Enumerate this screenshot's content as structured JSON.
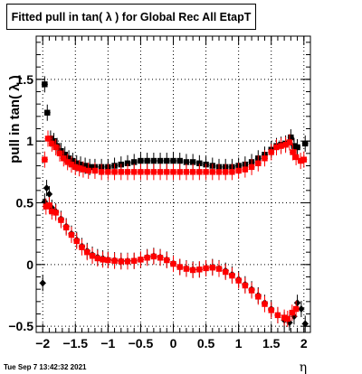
{
  "chart_data": {
    "type": "scatter",
    "title": "Fitted pull in tan( λ ) for Global Rec All EtapT",
    "xlabel": "η",
    "ylabel": "pull in tan( λ )",
    "xlim": [
      -2.1,
      2.1
    ],
    "ylim": [
      -0.55,
      1.85
    ],
    "grid": true,
    "xticks": [
      {
        "v": -2,
        "label": "−2"
      },
      {
        "v": -1.5,
        "label": "−1.5"
      },
      {
        "v": -1,
        "label": "−1"
      },
      {
        "v": -0.5,
        "label": "−0.5"
      },
      {
        "v": 0,
        "label": "0"
      },
      {
        "v": 0.5,
        "label": "0.5"
      },
      {
        "v": 1,
        "label": "1"
      },
      {
        "v": 1.5,
        "label": "1.5"
      },
      {
        "v": 2,
        "label": "2"
      }
    ],
    "yticks": [
      {
        "v": -0.5,
        "label": "−0.5"
      },
      {
        "v": 0,
        "label": "0"
      },
      {
        "v": 0.5,
        "label": "0.5"
      },
      {
        "v": 1,
        "label": "1"
      },
      {
        "v": 1.5,
        "label": "1.5"
      }
    ],
    "series": [
      {
        "color": "#000000",
        "marker": "square",
        "points": [
          [
            -1.97,
            1.46
          ],
          [
            -1.93,
            1.23
          ],
          [
            -1.88,
            1.02
          ],
          [
            -1.83,
            1.0
          ],
          [
            -1.78,
            0.96
          ],
          [
            -1.72,
            0.92
          ],
          [
            -1.66,
            0.89
          ],
          [
            -1.6,
            0.86
          ],
          [
            -1.54,
            0.84
          ],
          [
            -1.48,
            0.82
          ],
          [
            -1.42,
            0.81
          ],
          [
            -1.35,
            0.8
          ],
          [
            -1.28,
            0.79
          ],
          [
            -1.2,
            0.79
          ],
          [
            -1.1,
            0.79
          ],
          [
            -1.0,
            0.79
          ],
          [
            -0.9,
            0.8
          ],
          [
            -0.8,
            0.81
          ],
          [
            -0.7,
            0.82
          ],
          [
            -0.6,
            0.83
          ],
          [
            -0.5,
            0.84
          ],
          [
            -0.4,
            0.84
          ],
          [
            -0.3,
            0.84
          ],
          [
            -0.2,
            0.84
          ],
          [
            -0.1,
            0.84
          ],
          [
            0.0,
            0.84
          ],
          [
            0.1,
            0.84
          ],
          [
            0.2,
            0.83
          ],
          [
            0.3,
            0.83
          ],
          [
            0.4,
            0.82
          ],
          [
            0.5,
            0.81
          ],
          [
            0.6,
            0.8
          ],
          [
            0.7,
            0.79
          ],
          [
            0.8,
            0.79
          ],
          [
            0.9,
            0.79
          ],
          [
            1.0,
            0.8
          ],
          [
            1.1,
            0.81
          ],
          [
            1.2,
            0.83
          ],
          [
            1.3,
            0.86
          ],
          [
            1.4,
            0.89
          ],
          [
            1.5,
            0.93
          ],
          [
            1.58,
            0.96
          ],
          [
            1.65,
            0.97
          ],
          [
            1.72,
            0.98
          ],
          [
            1.8,
            1.03
          ],
          [
            1.85,
            0.96
          ],
          [
            1.9,
            0.95
          ],
          [
            2.02,
            0.98
          ]
        ]
      },
      {
        "color": "#ff0000",
        "marker": "square",
        "points": [
          [
            -1.97,
            0.85
          ],
          [
            -1.92,
            1.02
          ],
          [
            -1.86,
            0.98
          ],
          [
            -1.8,
            0.95
          ],
          [
            -1.74,
            0.9
          ],
          [
            -1.68,
            0.86
          ],
          [
            -1.62,
            0.83
          ],
          [
            -1.56,
            0.81
          ],
          [
            -1.5,
            0.79
          ],
          [
            -1.44,
            0.78
          ],
          [
            -1.38,
            0.77
          ],
          [
            -1.3,
            0.76
          ],
          [
            -1.2,
            0.76
          ],
          [
            -1.1,
            0.75
          ],
          [
            -1.0,
            0.75
          ],
          [
            -0.9,
            0.75
          ],
          [
            -0.8,
            0.75
          ],
          [
            -0.7,
            0.75
          ],
          [
            -0.6,
            0.75
          ],
          [
            -0.5,
            0.75
          ],
          [
            -0.4,
            0.75
          ],
          [
            -0.3,
            0.75
          ],
          [
            -0.2,
            0.75
          ],
          [
            -0.1,
            0.75
          ],
          [
            0.0,
            0.75
          ],
          [
            0.1,
            0.75
          ],
          [
            0.2,
            0.75
          ],
          [
            0.3,
            0.75
          ],
          [
            0.4,
            0.75
          ],
          [
            0.5,
            0.75
          ],
          [
            0.6,
            0.75
          ],
          [
            0.7,
            0.75
          ],
          [
            0.8,
            0.75
          ],
          [
            0.9,
            0.75
          ],
          [
            1.0,
            0.76
          ],
          [
            1.1,
            0.77
          ],
          [
            1.2,
            0.79
          ],
          [
            1.3,
            0.82
          ],
          [
            1.4,
            0.86
          ],
          [
            1.5,
            0.91
          ],
          [
            1.58,
            0.95
          ],
          [
            1.65,
            0.96
          ],
          [
            1.72,
            0.97
          ],
          [
            1.78,
            0.99
          ],
          [
            1.83,
            0.91
          ],
          [
            1.88,
            0.87
          ],
          [
            1.95,
            0.84
          ],
          [
            2.0,
            0.85
          ]
        ]
      },
      {
        "color": "#000000",
        "marker": "diamond",
        "points": [
          [
            -2.0,
            -0.15
          ],
          [
            -1.97,
            0.51
          ],
          [
            -1.94,
            0.62
          ],
          [
            -1.9,
            0.57
          ],
          [
            -1.86,
            0.46
          ],
          [
            -1.8,
            0.43
          ],
          [
            -1.72,
            0.37
          ],
          [
            -1.64,
            0.31
          ],
          [
            -1.56,
            0.25
          ],
          [
            -1.48,
            0.2
          ],
          [
            -1.4,
            0.15
          ],
          [
            -1.32,
            0.11
          ],
          [
            -1.24,
            0.08
          ],
          [
            -1.16,
            0.06
          ],
          [
            -1.08,
            0.05
          ],
          [
            -1.0,
            0.04
          ],
          [
            -0.9,
            0.035
          ],
          [
            -0.8,
            0.03
          ],
          [
            -0.7,
            0.03
          ],
          [
            -0.6,
            0.03
          ],
          [
            -0.5,
            0.04
          ],
          [
            -0.4,
            0.06
          ],
          [
            -0.3,
            0.07
          ],
          [
            -0.2,
            0.06
          ],
          [
            -0.1,
            0.04
          ],
          [
            0.0,
            0.01
          ],
          [
            0.1,
            -0.02
          ],
          [
            0.2,
            -0.03
          ],
          [
            0.3,
            -0.04
          ],
          [
            0.4,
            -0.04
          ],
          [
            0.5,
            -0.03
          ],
          [
            0.6,
            -0.02
          ],
          [
            0.7,
            -0.03
          ],
          [
            0.8,
            -0.05
          ],
          [
            0.9,
            -0.08
          ],
          [
            1.0,
            -0.12
          ],
          [
            1.1,
            -0.16
          ],
          [
            1.2,
            -0.2
          ],
          [
            1.3,
            -0.25
          ],
          [
            1.4,
            -0.31
          ],
          [
            1.5,
            -0.36
          ],
          [
            1.6,
            -0.41
          ],
          [
            1.7,
            -0.45
          ],
          [
            1.78,
            -0.47
          ],
          [
            1.85,
            -0.42
          ],
          [
            1.9,
            -0.31
          ],
          [
            1.96,
            -0.36
          ],
          [
            2.02,
            -0.48
          ]
        ]
      },
      {
        "color": "#ff0000",
        "marker": "square",
        "points": [
          [
            -1.95,
            0.47
          ],
          [
            -1.9,
            0.48
          ],
          [
            -1.86,
            0.43
          ],
          [
            -1.8,
            0.42
          ],
          [
            -1.72,
            0.36
          ],
          [
            -1.64,
            0.3
          ],
          [
            -1.56,
            0.24
          ],
          [
            -1.48,
            0.19
          ],
          [
            -1.4,
            0.14
          ],
          [
            -1.32,
            0.1
          ],
          [
            -1.24,
            0.07
          ],
          [
            -1.16,
            0.05
          ],
          [
            -1.08,
            0.04
          ],
          [
            -1.0,
            0.035
          ],
          [
            -0.9,
            0.03
          ],
          [
            -0.8,
            0.025
          ],
          [
            -0.7,
            0.025
          ],
          [
            -0.6,
            0.03
          ],
          [
            -0.5,
            0.04
          ],
          [
            -0.4,
            0.055
          ],
          [
            -0.3,
            0.065
          ],
          [
            -0.2,
            0.055
          ],
          [
            -0.1,
            0.035
          ],
          [
            0.0,
            0.005
          ],
          [
            0.1,
            -0.02
          ],
          [
            0.2,
            -0.035
          ],
          [
            0.3,
            -0.045
          ],
          [
            0.4,
            -0.04
          ],
          [
            0.5,
            -0.03
          ],
          [
            0.6,
            -0.025
          ],
          [
            0.7,
            -0.035
          ],
          [
            0.8,
            -0.06
          ],
          [
            0.9,
            -0.09
          ],
          [
            1.0,
            -0.13
          ],
          [
            1.1,
            -0.17
          ],
          [
            1.2,
            -0.21
          ],
          [
            1.3,
            -0.26
          ],
          [
            1.4,
            -0.32
          ],
          [
            1.5,
            -0.37
          ],
          [
            1.6,
            -0.41
          ],
          [
            1.7,
            -0.43
          ],
          [
            1.75,
            -0.44
          ],
          [
            1.82,
            -0.39
          ],
          [
            1.88,
            -0.36
          ]
        ]
      }
    ]
  },
  "footer": {
    "timestamp": "Tue Sep  7 13:42:32 2021"
  }
}
